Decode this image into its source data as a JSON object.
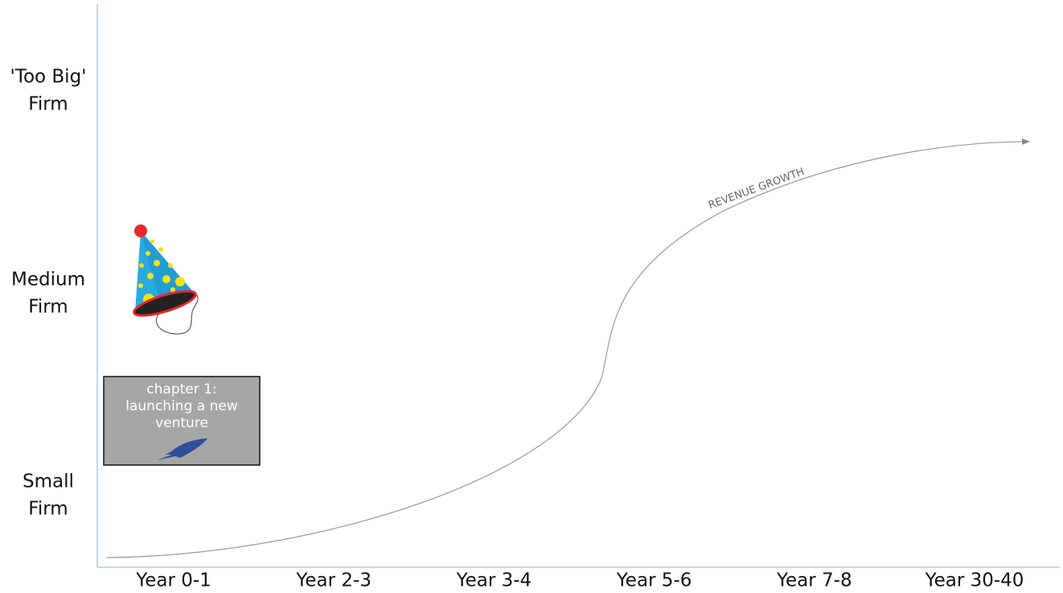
{
  "y_labels": [
    [
      "'Too Big'",
      "Firm"
    ],
    [
      "Medium",
      "Firm"
    ],
    [
      "Small",
      "Firm"
    ]
  ],
  "x_labels": [
    "Year 0-1",
    "Year 2-3",
    "Year 3-4",
    "Year 5-6",
    "Year 7-8",
    "Year 30-40"
  ],
  "curve_label": "REVENUE GROWTH",
  "box": {
    "lines": [
      "chapter 1:",
      "launching a new",
      "venture"
    ]
  }
}
